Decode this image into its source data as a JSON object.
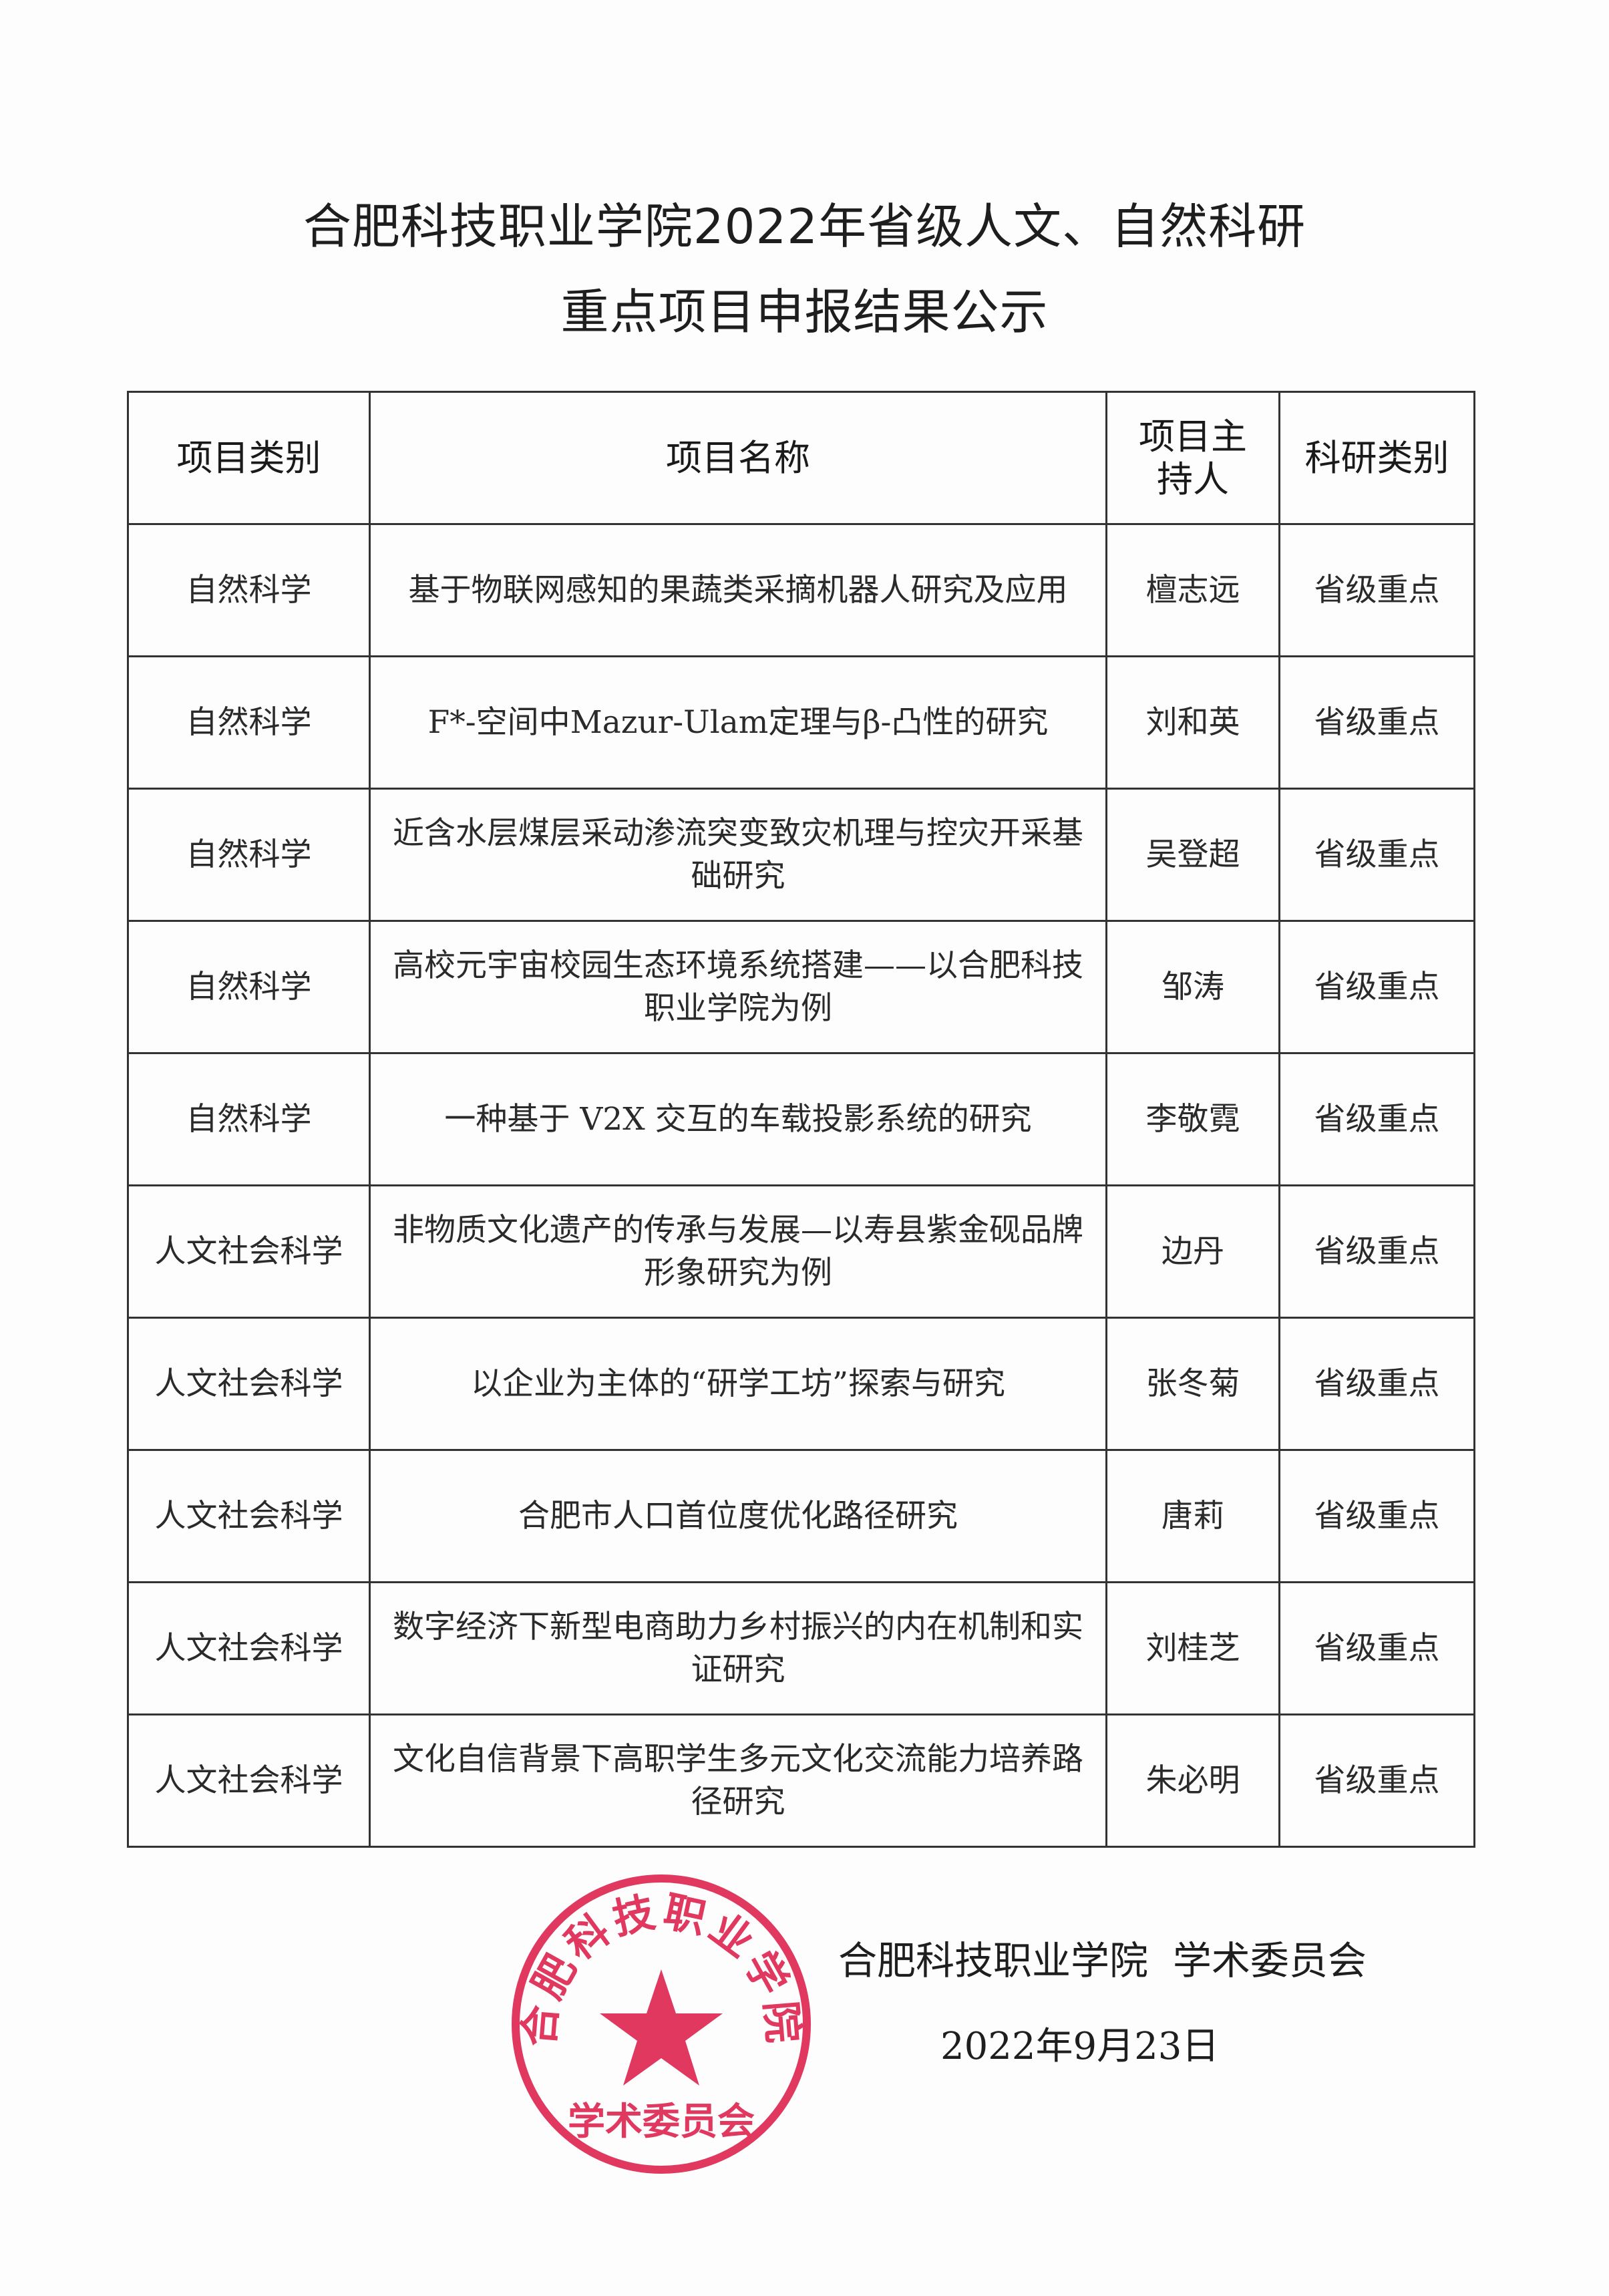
{
  "title": {
    "line1": "合肥科技职业学院2022年省级人文、自然科研",
    "line2": "重点项目申报结果公示"
  },
  "table": {
    "headers": [
      "项目类别",
      "项目名称",
      "项目主持人",
      "科研类别"
    ],
    "rows": [
      {
        "category": "自然科学",
        "name": "基于物联网感知的果蔬类采摘机器人研究及应用",
        "leader": "檀志远",
        "level": "省级重点"
      },
      {
        "category": "自然科学",
        "name": "F*-空间中Mazur-Ulam定理与β-凸性的研究",
        "leader": "刘和英",
        "level": "省级重点"
      },
      {
        "category": "自然科学",
        "name": "近含水层煤层采动渗流突变致灾机理与控灾开采基础研究",
        "leader": "吴登超",
        "level": "省级重点"
      },
      {
        "category": "自然科学",
        "name": "高校元宇宙校园生态环境系统搭建——以合肥科技职业学院为例",
        "leader": "邹涛",
        "level": "省级重点"
      },
      {
        "category": "自然科学",
        "name": "一种基于 V2X 交互的车载投影系统的研究",
        "leader": "李敬霓",
        "level": "省级重点"
      },
      {
        "category": "人文社会科学",
        "name": "非物质文化遗产的传承与发展—以寿县紫金砚品牌形象研究为例",
        "leader": "边丹",
        "level": "省级重点"
      },
      {
        "category": "人文社会科学",
        "name": "以企业为主体的“研学工坊”探索与研究",
        "leader": "张冬菊",
        "level": "省级重点"
      },
      {
        "category": "人文社会科学",
        "name": "合肥市人口首位度优化路径研究",
        "leader": "唐莉",
        "level": "省级重点"
      },
      {
        "category": "人文社会科学",
        "name": "数字经济下新型电商助力乡村振兴的内在机制和实证研究",
        "leader": "刘桂芝",
        "level": "省级重点"
      },
      {
        "category": "人文社会科学",
        "name": "文化自信背景下高职学生多元文化交流能力培养路径研究",
        "leader": "朱必明",
        "level": "省级重点"
      }
    ]
  },
  "footer": {
    "signature": "合肥科技职业学院  学术委员会",
    "date": "2022年9月23日"
  },
  "stamp": {
    "top_text": "合肥科技职业学院",
    "bottom_text": "学术委员会",
    "color": "#e0385f"
  }
}
